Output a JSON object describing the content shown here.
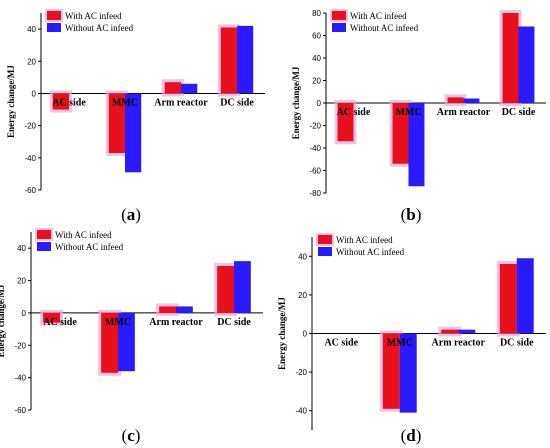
{
  "chart_data": [
    {
      "type": "bar",
      "panel_label": "a",
      "categories": [
        "AC side",
        "MMC",
        "Arm reactor",
        "DC side"
      ],
      "series": [
        {
          "name": "With AC infeed",
          "values": [
            -10,
            -37,
            7,
            41
          ]
        },
        {
          "name": "Without AC infeed",
          "values": [
            0,
            -49,
            6,
            42
          ]
        }
      ],
      "ylabel": "Energy change/MJ",
      "ylim": [
        -60,
        50
      ],
      "yticks": [
        -60,
        -40,
        -20,
        0,
        20,
        40
      ],
      "legend": "top-left"
    },
    {
      "type": "bar",
      "panel_label": "b",
      "categories": [
        "AC side",
        "MMC",
        "Arm reactor",
        "DC side"
      ],
      "series": [
        {
          "name": "With AC infeed",
          "values": [
            -34,
            -54,
            5,
            80
          ]
        },
        {
          "name": "Without AC infeed",
          "values": [
            0,
            -74,
            4,
            68
          ]
        }
      ],
      "ylabel": "Energy change/MJ",
      "ylim": [
        -80,
        80
      ],
      "yticks": [
        -80,
        -60,
        -40,
        -20,
        0,
        20,
        40,
        60,
        80
      ],
      "legend": "top-left"
    },
    {
      "type": "bar",
      "panel_label": "c",
      "categories": [
        "AC side",
        "MMC",
        "Arm reactor",
        "DC side"
      ],
      "series": [
        {
          "name": "With AC infeed",
          "values": [
            -6,
            -37,
            4,
            29
          ]
        },
        {
          "name": "Without AC infeed",
          "values": [
            0,
            -36,
            4,
            32
          ]
        }
      ],
      "ylabel": "Energy change/MJ",
      "ylim": [
        -60,
        50
      ],
      "yticks": [
        -60,
        -40,
        -20,
        0,
        20,
        40
      ],
      "legend": "top-left"
    },
    {
      "type": "bar",
      "panel_label": "d",
      "categories": [
        "AC side",
        "MMC",
        "Arm reactor",
        "DC side"
      ],
      "series": [
        {
          "name": "With AC infeed",
          "values": [
            0,
            -39,
            2,
            36
          ]
        },
        {
          "name": "Without AC infeed",
          "values": [
            0,
            -41,
            2,
            39
          ]
        }
      ],
      "ylabel": "Energy change/MJ",
      "ylim": [
        -50,
        50
      ],
      "yticks": [
        -40,
        -20,
        0,
        20,
        40
      ],
      "legend": "top-left"
    }
  ],
  "colors": {
    "with": "#e8101c",
    "without": "#2a1aff",
    "halo": "#f0a6dc"
  }
}
